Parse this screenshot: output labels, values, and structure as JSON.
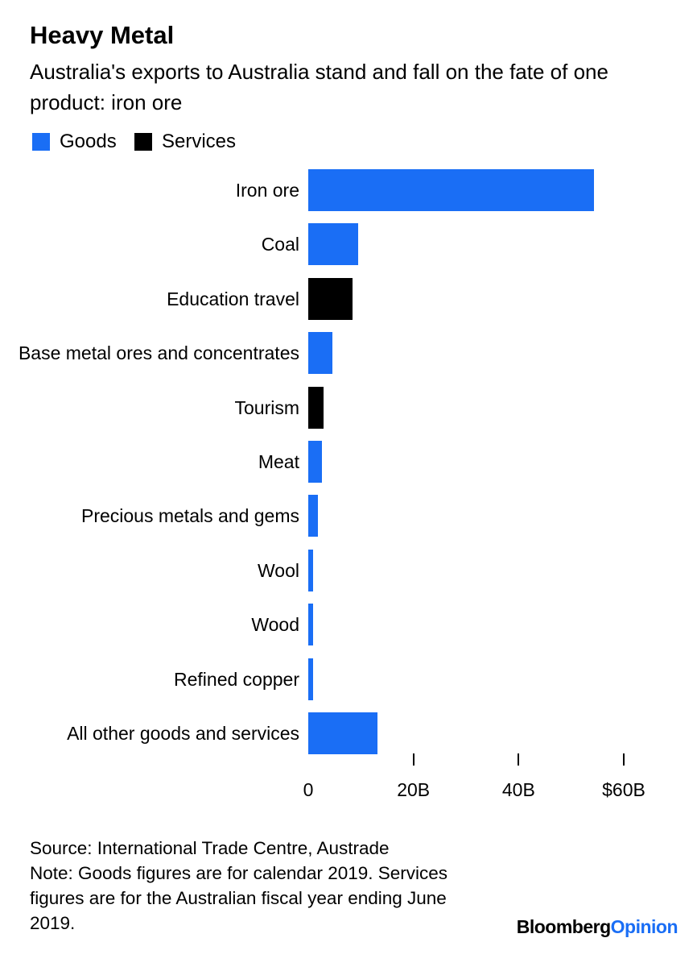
{
  "chart_data": {
    "type": "bar",
    "orientation": "horizontal",
    "title": "Heavy Metal",
    "subtitle": "Australia's exports to Australia stand and fall on the fate of one product: iron ore",
    "categories": [
      "Iron ore",
      "Coal",
      "Education travel",
      "Base metal ores and concentrates",
      "Tourism",
      "Meat",
      "Precious metals and gems",
      "Wool",
      "Wood",
      "Refined copper",
      "All other goods and services"
    ],
    "series": [
      {
        "name": "Goods",
        "color": "#1a6ef5",
        "values": [
          54.4,
          9.5,
          null,
          4.6,
          null,
          2.6,
          1.8,
          0.9,
          0.9,
          0.9,
          13.2
        ]
      },
      {
        "name": "Services",
        "color": "#000000",
        "values": [
          null,
          null,
          8.4,
          null,
          2.9,
          null,
          null,
          null,
          null,
          null,
          null
        ]
      }
    ],
    "xlim": [
      0,
      60
    ],
    "xticks": [
      0,
      {
        "value": 20,
        "label": "20B"
      },
      {
        "value": 40,
        "label": "40B"
      },
      {
        "value": 60,
        "label": "$60B"
      }
    ],
    "legend": "top-left",
    "source": "Source: International Trade Centre, Austrade",
    "note": "Note: Goods figures are for calendar 2019. Services figures are for the Australian fiscal year ending June 2019.",
    "brand": {
      "name": "Bloomberg",
      "suffix": "Opinion"
    }
  }
}
